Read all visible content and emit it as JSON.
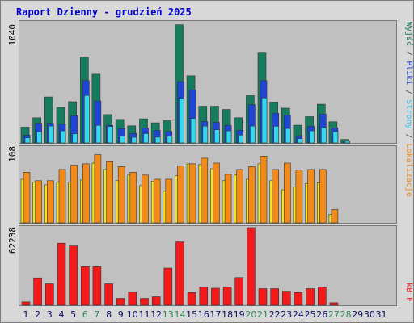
{
  "title": "Raport Dzienny -  grudzień  2025",
  "colors": {
    "frame": "#d8d8d8",
    "panel": "#c0c0c0",
    "title": "#0000cc",
    "visits_dark": "#177b5e",
    "visits_mid": "#1f45d6",
    "visits_light": "#33d9ee",
    "hosts": "#f4e51c",
    "kb": "#f21a1a",
    "day_normal": "#0b0b62",
    "day_weekend": "#2c8a5a"
  },
  "legends": {
    "top": [
      "Wyjść",
      "/",
      "Pliki",
      "/",
      "Strony",
      "/",
      "Lokalizacje"
    ],
    "top_text": "Wyjście / Pliki / Strony / Lokalizacje",
    "bottom": "kB F"
  },
  "chart_data": [
    {
      "type": "bar",
      "name": "visits-panel",
      "ymax_label": "1040",
      "ylim": [
        0,
        1040
      ],
      "categories": [
        "1",
        "2",
        "3",
        "4",
        "5",
        "6",
        "7",
        "8",
        "9",
        "10",
        "11",
        "12",
        "13",
        "14",
        "15",
        "16",
        "17",
        "18",
        "19",
        "20",
        "21",
        "22",
        "23",
        "24",
        "25",
        "26",
        "27",
        "28",
        "29",
        "30",
        "31"
      ],
      "series": [
        {
          "values": [
            136,
            217,
            397,
            307,
            356,
            742,
            594,
            245,
            203,
            148,
            209,
            174,
            192,
            1021,
            580,
            317,
            317,
            289,
            218,
            408,
            777,
            353,
            300,
            153,
            227,
            334,
            183,
            30,
            0,
            0,
            0
          ]
        },
        {
          "values": [
            68,
            170,
            170,
            163,
            235,
            539,
            363,
            152,
            124,
            82,
            130,
            109,
            99,
            530,
            459,
            184,
            178,
            151,
            110,
            331,
            539,
            256,
            240,
            62,
            144,
            249,
            130,
            15,
            0,
            0,
            0
          ]
        },
        {
          "values": [
            44,
            96,
            146,
            104,
            79,
            410,
            152,
            142,
            58,
            48,
            80,
            50,
            58,
            387,
            212,
            145,
            114,
            104,
            68,
            146,
            389,
            144,
            125,
            37,
            105,
            134,
            97,
            15,
            0,
            0,
            0
          ]
        }
      ]
    },
    {
      "type": "bar",
      "name": "hosts-panel",
      "ymax_label": "108",
      "ylim": [
        0,
        108
      ],
      "categories": [
        "1",
        "2",
        "3",
        "4",
        "5",
        "6",
        "7",
        "8",
        "9",
        "10",
        "11",
        "12",
        "13",
        "14",
        "15",
        "16",
        "17",
        "18",
        "19",
        "20",
        "21",
        "22",
        "23",
        "24",
        "25",
        "26",
        "27",
        "28",
        "29",
        "30",
        "31"
      ],
      "series": [
        {
          "values": [
            62,
            58,
            54,
            58,
            58,
            61,
            85,
            76,
            60,
            68,
            53,
            59,
            45,
            67,
            84,
            83,
            77,
            60,
            68,
            62,
            84,
            60,
            47,
            51,
            56,
            57,
            12,
            0,
            0,
            0,
            0
          ]
        },
        {
          "values": [
            72,
            60,
            60,
            76,
            82,
            84,
            97,
            87,
            80,
            72,
            68,
            62,
            62,
            81,
            84,
            92,
            85,
            69,
            76,
            80,
            95,
            76,
            85,
            75,
            76,
            76,
            19,
            0,
            0,
            0,
            0
          ]
        }
      ]
    },
    {
      "type": "bar",
      "name": "kb-panel",
      "ymax_label": "62238",
      "ylim": [
        0,
        62238
      ],
      "categories": [
        "1",
        "2",
        "3",
        "4",
        "5",
        "6",
        "7",
        "8",
        "9",
        "10",
        "11",
        "12",
        "13",
        "14",
        "15",
        "16",
        "17",
        "18",
        "19",
        "20",
        "21",
        "22",
        "23",
        "24",
        "25",
        "26",
        "27",
        "28",
        "29",
        "30",
        "31"
      ],
      "series": [
        {
          "values": [
            2700,
            21900,
            17200,
            49800,
            47600,
            31000,
            31000,
            17200,
            5500,
            10600,
            5500,
            6800,
            29800,
            50800,
            10200,
            14500,
            13600,
            14500,
            22200,
            62238,
            13300,
            13300,
            11300,
            10200,
            13300,
            14500,
            2000,
            0,
            0,
            0,
            0
          ]
        }
      ]
    }
  ],
  "weekend_days": [
    "6",
    "7",
    "13",
    "14",
    "20",
    "21",
    "27",
    "28"
  ]
}
